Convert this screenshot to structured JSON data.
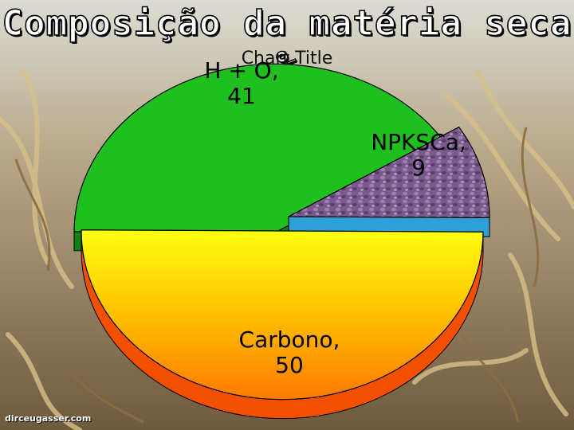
{
  "slide": {
    "heading": "Composição da matéria seca %",
    "watermark": "dirceugasser.com"
  },
  "colors": {
    "oxygen_fill": "#1fbf1f",
    "oxygen_side": "#128012",
    "npk_fill": "#7a5a8c",
    "npk_side": "#2f9fd8",
    "carbon_top": "#ffff10",
    "carbon_bottom": "#ff7a00",
    "carbon_side": "#f25000"
  },
  "chart_data": {
    "type": "pie",
    "title": "Chart Title",
    "categories": [
      "H + O",
      "NPKSCa",
      "Carbono"
    ],
    "values": [
      41,
      9,
      50
    ],
    "labels": [
      "H + O,\n41",
      "NPKSCa,\n9",
      "Carbono,\n50"
    ],
    "style": "3d-exploded",
    "legend": "none"
  }
}
